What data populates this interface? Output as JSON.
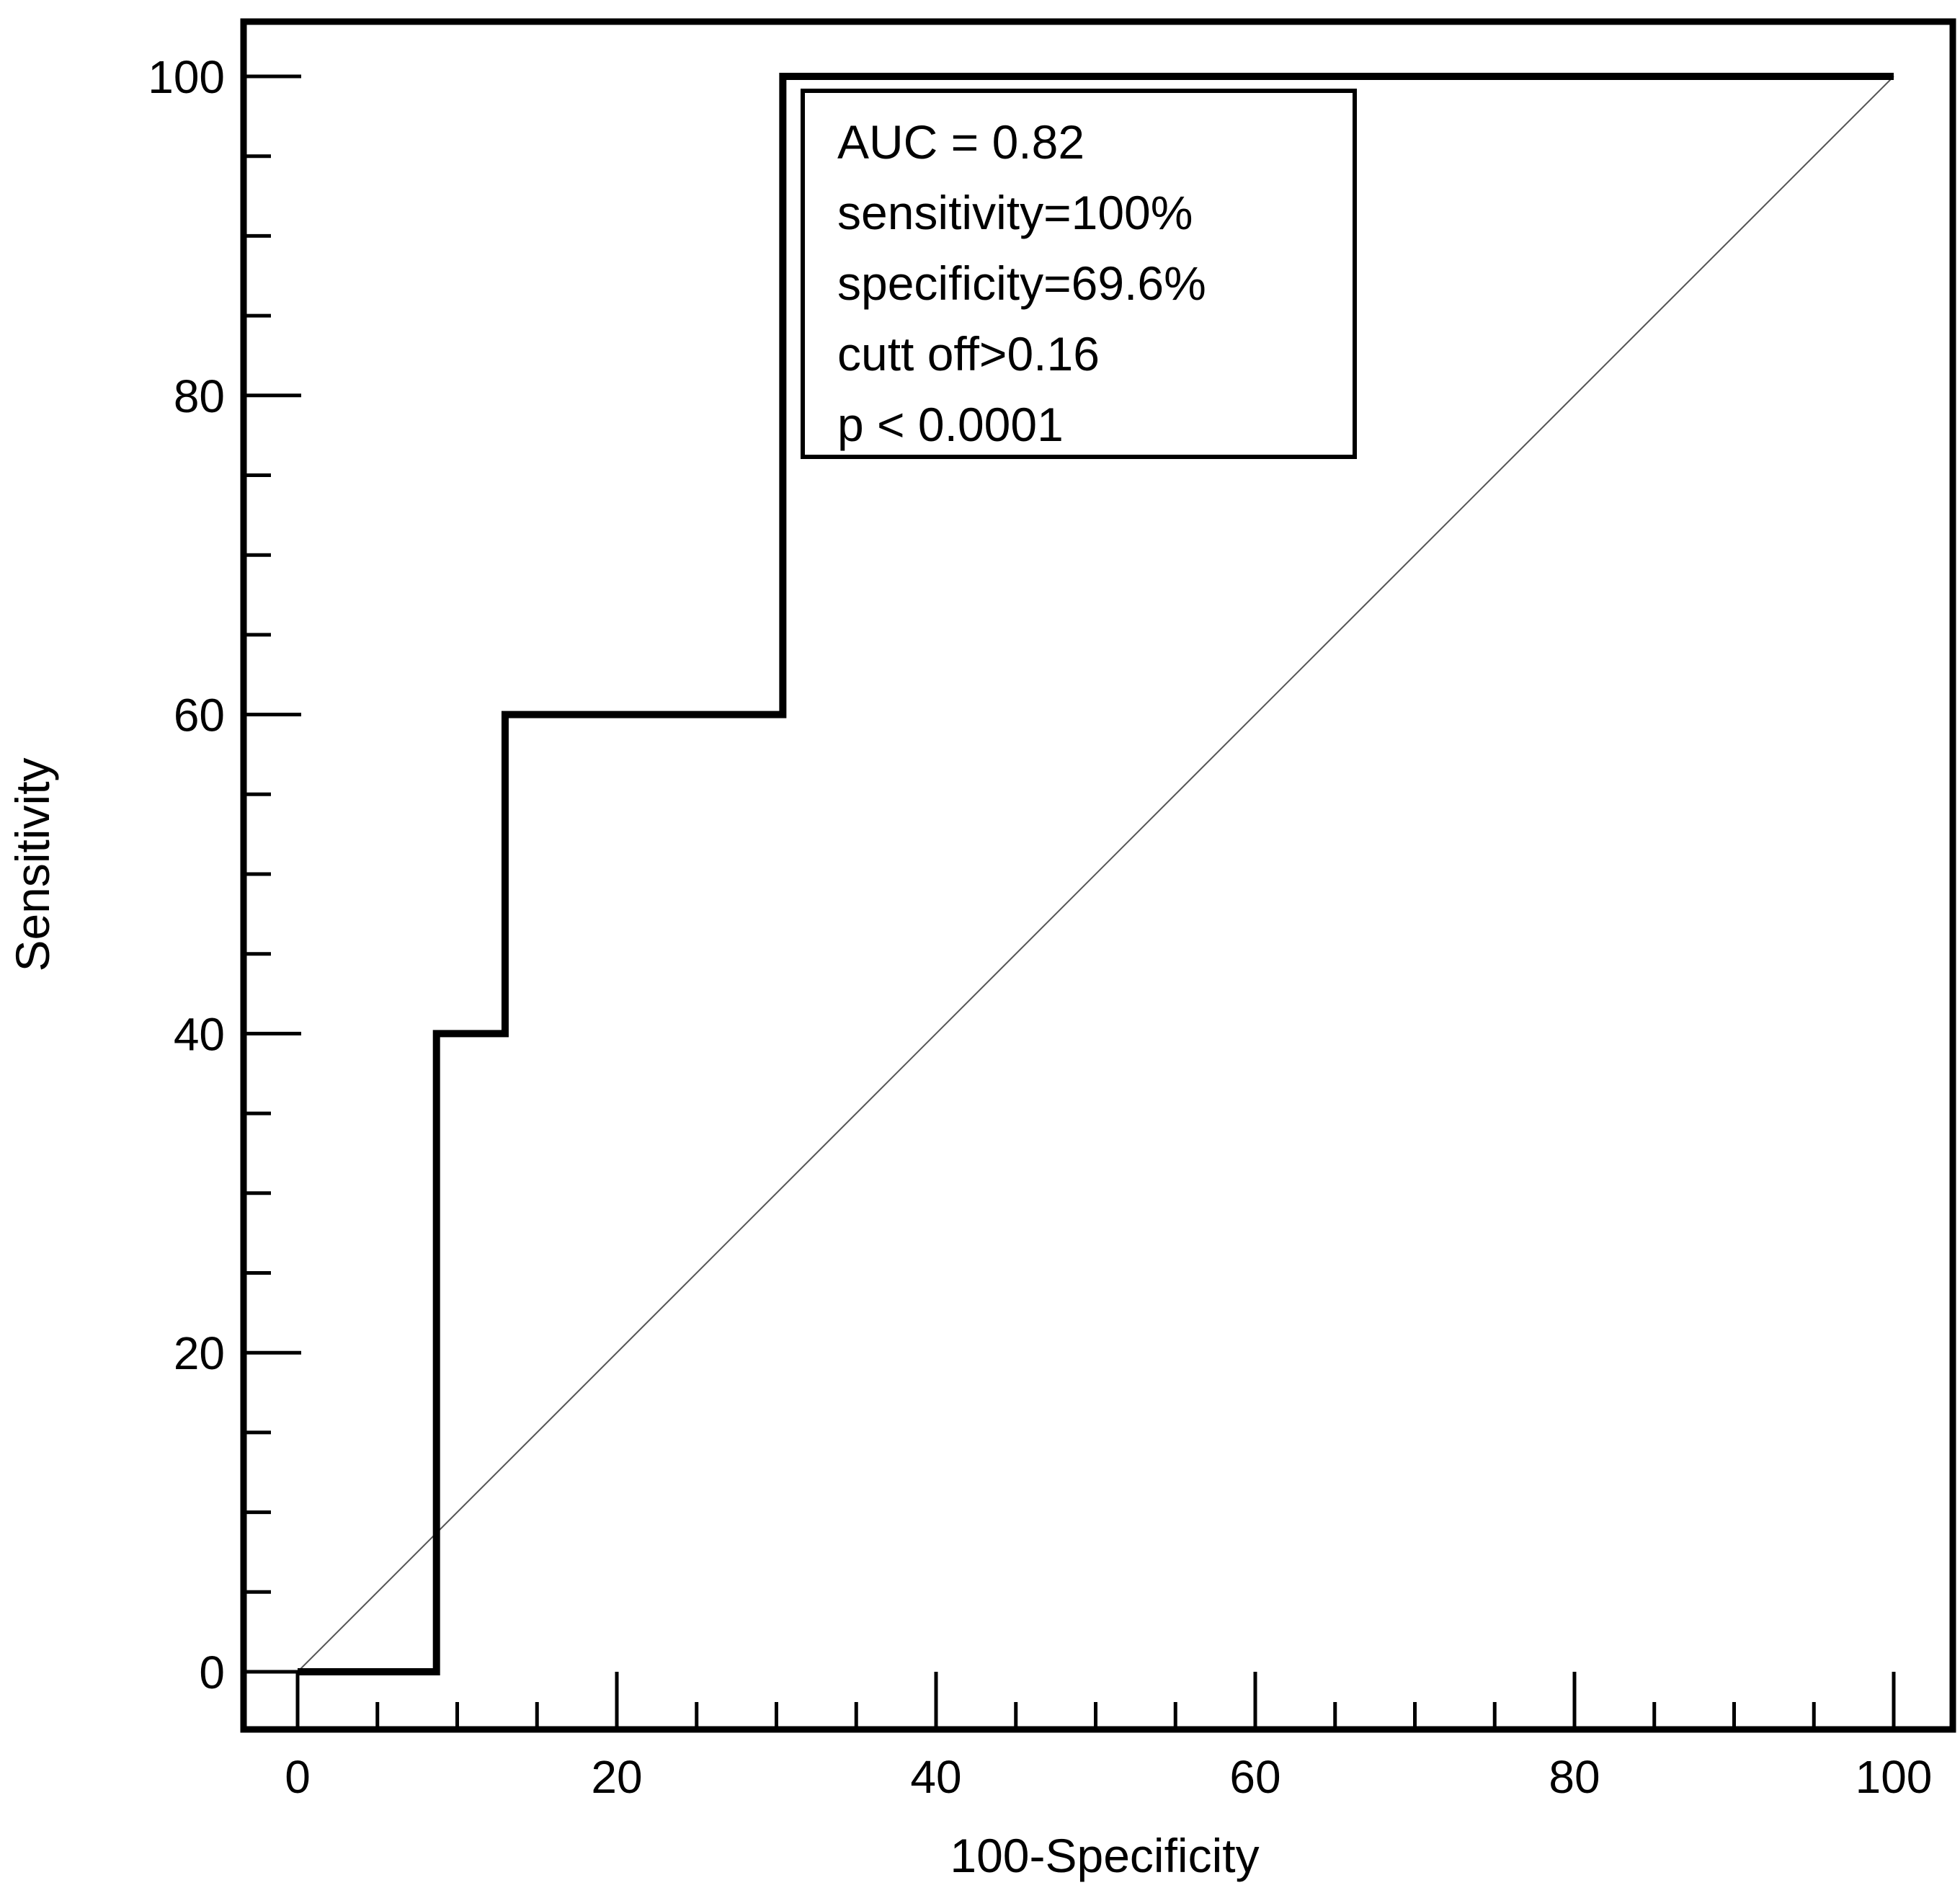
{
  "chart_data": {
    "type": "line",
    "xlabel": "100-Specificity",
    "ylabel": "Sensitivity",
    "xlim": [
      0,
      100
    ],
    "ylim": [
      0,
      100
    ],
    "x_ticks": [
      0,
      20,
      40,
      60,
      80,
      100
    ],
    "y_ticks": [
      0,
      20,
      40,
      60,
      80,
      100
    ],
    "x_minor_step": 5,
    "y_minor_step": 5,
    "grid": false,
    "series": [
      {
        "style": "step",
        "color": "#000000",
        "points": [
          [
            0,
            0
          ],
          [
            8.7,
            0
          ],
          [
            8.7,
            40
          ],
          [
            13.0,
            40
          ],
          [
            13.0,
            60
          ],
          [
            30.4,
            60
          ],
          [
            30.4,
            100
          ],
          [
            100,
            100
          ]
        ]
      },
      {
        "style": "reference-diagonal",
        "color": "#555555",
        "points": [
          [
            0,
            0
          ],
          [
            100,
            100
          ]
        ]
      }
    ],
    "annotation": {
      "placement": "top-center",
      "lines": [
        "AUC = 0.82",
        "sensitivity=100%",
        "specificity=69.6%",
        "cutt off>0.16",
        "p < 0.0001"
      ]
    }
  }
}
